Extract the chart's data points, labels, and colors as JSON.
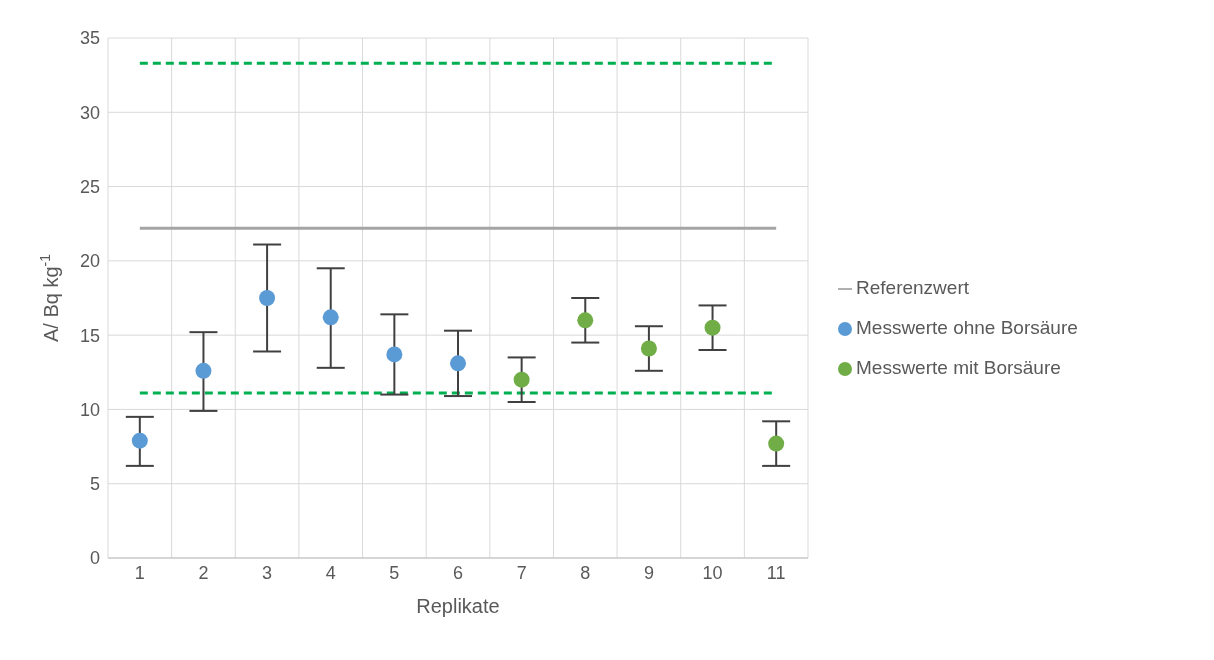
{
  "chart_data": {
    "type": "scatter",
    "xlabel": "Replikate",
    "ylabel": "A/ Bq kg$^{-1}$",
    "categories": [
      "1",
      "2",
      "3",
      "4",
      "5",
      "6",
      "7",
      "8",
      "9",
      "10",
      "11"
    ],
    "series": [
      {
        "name": "Referenzwert",
        "type": "line",
        "color": "#a5a5a5",
        "marker": "none",
        "values": [
          22.2,
          22.2,
          22.2,
          22.2,
          22.2,
          22.2,
          22.2,
          22.2,
          22.2,
          22.2,
          22.2
        ]
      },
      {
        "name": "Messwerte ohne Borsäure",
        "color": "#5b9bd5",
        "values": [
          7.9,
          12.6,
          17.5,
          16.2,
          13.7,
          13.1,
          null,
          null,
          null,
          null,
          null
        ],
        "errors": [
          [
            6.2,
            9.5
          ],
          [
            9.9,
            15.2
          ],
          [
            13.9,
            21.1
          ],
          [
            12.8,
            19.5
          ],
          [
            11.0,
            16.4
          ],
          [
            10.9,
            15.3
          ],
          null,
          null,
          null,
          null,
          null
        ]
      },
      {
        "name": "Messwerte mit Borsäure",
        "color": "#70ad47",
        "values": [
          null,
          null,
          null,
          null,
          null,
          null,
          12.0,
          16.0,
          14.1,
          15.5,
          7.7
        ],
        "errors": [
          null,
          null,
          null,
          null,
          null,
          null,
          [
            10.5,
            13.5
          ],
          [
            14.5,
            17.5
          ],
          [
            12.6,
            15.6
          ],
          [
            14.0,
            17.0
          ],
          [
            6.2,
            9.2
          ]
        ]
      }
    ],
    "ref_lines": [
      {
        "axis": "y",
        "value": 33.3,
        "color": "#00b050",
        "line_style": "dashed"
      },
      {
        "axis": "y",
        "value": 11.1,
        "color": "#00b050",
        "line_style": "dashed"
      }
    ],
    "ylim": [
      0,
      35
    ],
    "yticks": [
      0,
      5,
      10,
      15,
      20,
      25,
      30,
      35
    ],
    "grid": true,
    "legend": "right",
    "marker": "circle"
  }
}
